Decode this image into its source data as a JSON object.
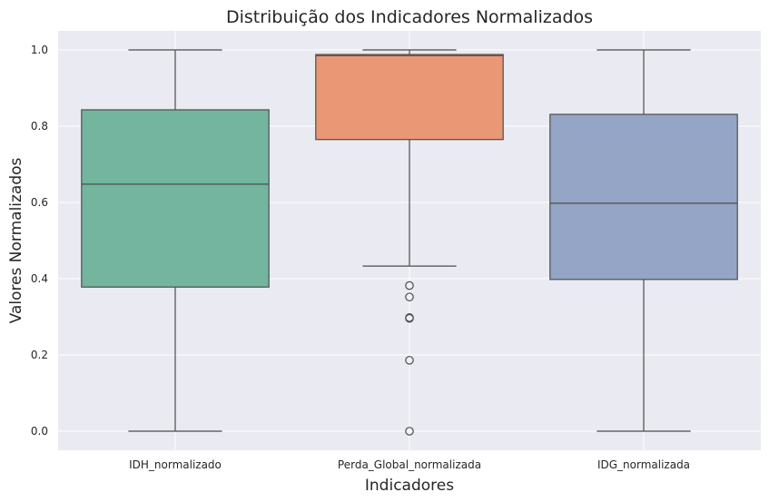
{
  "chart_data": {
    "type": "box",
    "title": "Distribuição dos Indicadores Normalizados",
    "xlabel": "Indicadores",
    "ylabel": "Valores Normalizados",
    "ylim": [
      -0.05,
      1.05
    ],
    "yticks": [
      "0.0",
      "0.2",
      "0.4",
      "0.6",
      "0.8",
      "1.0"
    ],
    "grid": true,
    "background": "#EAEAF2",
    "series": [
      {
        "category": "IDH_normalizado",
        "color": "#73B59F",
        "whisker_low": 0.0,
        "q1": 0.378,
        "median": 0.648,
        "q3": 0.843,
        "whisker_high": 1.0,
        "outliers": []
      },
      {
        "category": "Perda_Global_normalizada",
        "color": "#EA9775",
        "whisker_low": 0.433,
        "q1": 0.765,
        "median": 0.985,
        "q3": 0.988,
        "whisker_high": 1.0,
        "outliers": [
          0.382,
          0.352,
          0.298,
          0.296,
          0.186,
          0.0
        ]
      },
      {
        "category": "IDG_normalizada",
        "color": "#94A5C5",
        "whisker_low": 0.0,
        "q1": 0.398,
        "median": 0.598,
        "q3": 0.831,
        "whisker_high": 1.0,
        "outliers": []
      }
    ]
  }
}
